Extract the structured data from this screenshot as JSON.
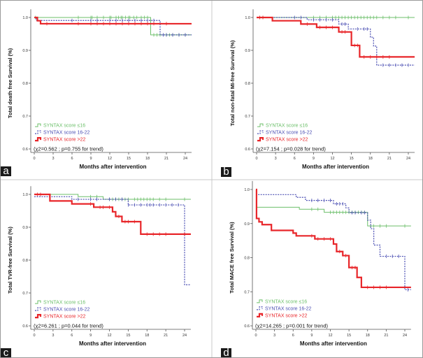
{
  "colors": {
    "le16": "#6cbf6a",
    "16to22": "#4b4fb3",
    "gt22": "#e8262a"
  },
  "chart_data": [
    {
      "type": "line",
      "panel": "a",
      "ylabel": "Total death free Survival (%)",
      "xlabel": "Months after intervention",
      "annotation": "(χ2=0.562 ; p=0.755 for trend)",
      "xlim": [
        0,
        25
      ],
      "ylim": [
        0.6,
        1.0
      ],
      "xticks": [
        "0",
        "3",
        "6",
        "9",
        "12",
        "15",
        "18",
        "21",
        "24"
      ],
      "yticks": [
        "0.6",
        "0.7",
        "0.8",
        "0.9",
        "1.0"
      ],
      "series": [
        {
          "name": "SYNTAX score ≤16",
          "key": "le16",
          "steps": [
            [
              0,
              1
            ],
            [
              18.5,
              0.947
            ]
          ],
          "censored": [
            0.2,
            7,
            9,
            9.2,
            10,
            11,
            12,
            12.2,
            13,
            13.4,
            13.8,
            14,
            14.5,
            15,
            15.2,
            15.8,
            16.3,
            17,
            17.5,
            18,
            19,
            19.5,
            20,
            21,
            21.5,
            22,
            23,
            24
          ]
        },
        {
          "name": "SYNTAX score 16-22",
          "key": "16to22",
          "steps": [
            [
              0,
              1
            ],
            [
              0.3,
              0.991
            ],
            [
              20,
              0.947
            ]
          ],
          "censored": [
            6,
            9,
            10,
            12,
            13,
            14,
            15,
            16,
            17,
            18,
            19,
            20.5,
            21,
            22,
            23,
            24
          ]
        },
        {
          "name": "SYNTAX score >22",
          "key": "gt22",
          "steps": [
            [
              0,
              1
            ],
            [
              0.5,
              0.99
            ],
            [
              1,
              0.981
            ]
          ],
          "censored": [
            2,
            7,
            9,
            10,
            11,
            12,
            13,
            14,
            15,
            16,
            17,
            18,
            19,
            21
          ]
        }
      ]
    },
    {
      "type": "line",
      "panel": "b",
      "ylabel": "Total non-fatal MI-free Survival (%)",
      "xlabel": "Months after intervention",
      "annotation": "(χ2=7.154 ; p=0.028 for trend)",
      "xlim": [
        0,
        25
      ],
      "ylim": [
        0.6,
        1.0
      ],
      "xticks": [
        "0",
        "3",
        "6",
        "9",
        "12",
        "15",
        "18",
        "21",
        "24"
      ],
      "yticks": [
        "0.6",
        "0.7",
        "0.8",
        "0.9",
        "1.0"
      ],
      "series": [
        {
          "name": "SYNTAX score ≤16",
          "key": "le16",
          "steps": [
            [
              0,
              1
            ]
          ],
          "censored": [
            0.5,
            1,
            9,
            10,
            11,
            12,
            12.5,
            13,
            13.5,
            14,
            14.5,
            15,
            15.5,
            16,
            16.5,
            17,
            17.5,
            18,
            18.5,
            19,
            20,
            21,
            22,
            24
          ]
        },
        {
          "name": "SYNTAX score 16-22",
          "key": "16to22",
          "steps": [
            [
              0,
              1
            ],
            [
              8,
              0.993
            ],
            [
              13,
              0.98
            ],
            [
              14.5,
              0.965
            ],
            [
              18,
              0.94
            ],
            [
              18.5,
              0.913
            ],
            [
              19,
              0.855
            ]
          ],
          "censored": [
            6,
            7,
            9,
            10,
            11,
            12,
            13.5,
            14,
            16,
            17,
            17.5,
            20,
            21,
            22,
            23,
            24
          ]
        },
        {
          "name": "SYNTAX score >22",
          "key": "gt22",
          "steps": [
            [
              0,
              1
            ],
            [
              2.5,
              0.99
            ],
            [
              7,
              0.98
            ],
            [
              9.5,
              0.97
            ],
            [
              13,
              0.956
            ],
            [
              15,
              0.915
            ],
            [
              16.3,
              0.88
            ]
          ],
          "censored": [
            0.5,
            1,
            8,
            10,
            11,
            12,
            13.5,
            14,
            15.5,
            16,
            17,
            18,
            19,
            20,
            21
          ]
        }
      ]
    },
    {
      "type": "line",
      "panel": "c",
      "ylabel": "Total TVR-free Survival (%)",
      "xlabel": "Months after intervention",
      "annotation": "(χ2=6.261 ; p=0.044 for trend)",
      "xlim": [
        0,
        25
      ],
      "ylim": [
        0.6,
        1.0
      ],
      "xticks": [
        "0",
        "3",
        "6",
        "9",
        "12",
        "15",
        "18",
        "21",
        "24"
      ],
      "yticks": [
        "0.6",
        "0.7",
        "0.8",
        "0.9",
        "1.0"
      ],
      "series": [
        {
          "name": "SYNTAX score ≤16",
          "key": "le16",
          "steps": [
            [
              0,
              1
            ],
            [
              7,
              0.993
            ],
            [
              11,
              0.985
            ]
          ],
          "censored": [
            9,
            10,
            12,
            12.5,
            13,
            13.5,
            14,
            14.5,
            15,
            16,
            16.5,
            17,
            17.5,
            18,
            18.5,
            19,
            20,
            21,
            24
          ]
        },
        {
          "name": "SYNTAX score 16-22",
          "key": "16to22",
          "steps": [
            [
              0,
              0.993
            ],
            [
              6,
              0.985
            ],
            [
              15,
              0.968
            ],
            [
              24,
              0.725
            ]
          ],
          "censored": [
            7,
            9,
            10,
            12,
            13,
            14,
            15,
            16,
            17,
            18,
            18.5,
            19,
            20,
            21,
            22,
            23
          ]
        },
        {
          "name": "SYNTAX score >22",
          "key": "gt22",
          "steps": [
            [
              0,
              1
            ],
            [
              2.5,
              0.98
            ],
            [
              6,
              0.971
            ],
            [
              9.5,
              0.961
            ],
            [
              12.5,
              0.947
            ],
            [
              13,
              0.933
            ],
            [
              14,
              0.917
            ],
            [
              17,
              0.879
            ]
          ],
          "censored": [
            0.5,
            1,
            9,
            10.5,
            11,
            12,
            13.5,
            14.5,
            15,
            16,
            18,
            19,
            20,
            21,
            24
          ]
        }
      ]
    },
    {
      "type": "line",
      "panel": "d",
      "ylabel": "Total MACE free Survival (%)",
      "xlabel": "Months after intervention",
      "annotation": "(χ2=14.265 ; p=0.001 for trend)",
      "xlim": [
        0,
        25
      ],
      "ylim": [
        0.6,
        1.0
      ],
      "xticks": [
        "0",
        "3",
        "6",
        "9",
        "12",
        "15",
        "18",
        "21",
        "24"
      ],
      "yticks": [
        "0.6",
        "0.7",
        "0.8",
        "0.9",
        "1.0"
      ],
      "series": [
        {
          "name": "SYNTAX score ≤16",
          "key": "le16",
          "steps": [
            [
              0,
              1
            ],
            [
              0.1,
              0.948
            ],
            [
              7,
              0.942
            ],
            [
              11,
              0.933
            ],
            [
              18,
              0.893
            ]
          ],
          "censored": [
            9,
            10,
            12,
            12.5,
            13,
            13.5,
            14,
            14.5,
            15,
            15.5,
            16,
            16.5,
            17,
            17.5,
            18.5,
            19,
            20,
            21,
            24
          ]
        },
        {
          "name": "SYNTAX score 16-22",
          "key": "16to22",
          "steps": [
            [
              0,
              1
            ],
            [
              0.1,
              0.985
            ],
            [
              6.5,
              0.977
            ],
            [
              8,
              0.968
            ],
            [
              12.5,
              0.958
            ],
            [
              14.5,
              0.946
            ],
            [
              15,
              0.932
            ],
            [
              18,
              0.91
            ],
            [
              18.5,
              0.885
            ],
            [
              19,
              0.837
            ],
            [
              20,
              0.804
            ],
            [
              24,
              0.706
            ]
          ],
          "censored": [
            9,
            10,
            11,
            12,
            13,
            13.5,
            14,
            15.5,
            16,
            17,
            17.5,
            21,
            22,
            23,
            24.5
          ]
        },
        {
          "name": "SYNTAX score >22",
          "key": "gt22",
          "steps": [
            [
              0,
              1
            ],
            [
              0.1,
              0.915
            ],
            [
              0.5,
              0.905
            ],
            [
              1,
              0.897
            ],
            [
              2.5,
              0.88
            ],
            [
              6,
              0.872
            ],
            [
              6.5,
              0.864
            ],
            [
              9.5,
              0.855
            ],
            [
              12.5,
              0.84
            ],
            [
              13,
              0.818
            ],
            [
              14,
              0.806
            ],
            [
              15,
              0.771
            ],
            [
              16.3,
              0.742
            ],
            [
              17,
              0.713
            ]
          ],
          "censored": [
            9,
            10,
            11,
            12,
            13.5,
            14.5,
            15.5,
            16,
            18,
            19,
            20,
            21
          ]
        }
      ]
    }
  ]
}
